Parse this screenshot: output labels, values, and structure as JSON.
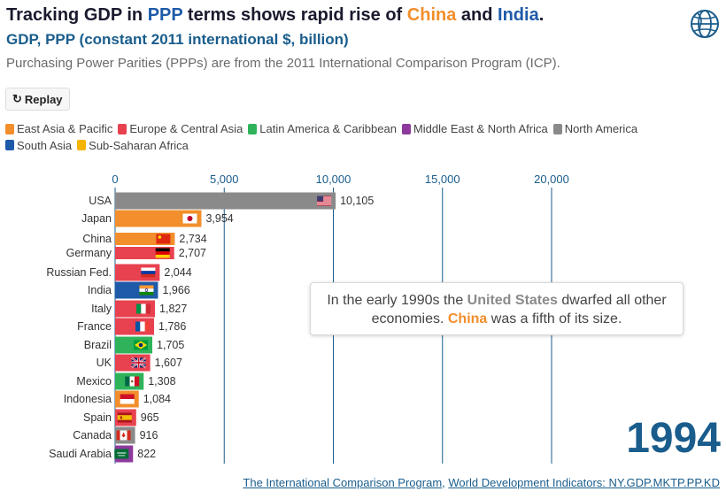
{
  "header": {
    "title_pre": "Tracking GDP in ",
    "title_ppp": "PPP",
    "title_mid": " terms shows rapid rise of ",
    "title_china": "China",
    "title_and": " and ",
    "title_india": "India",
    "title_end": ".",
    "subtitle": "GDP, PPP (constant 2011 international $, billion)",
    "description": "Purchasing Power Parities (PPPs) are from the 2011 International Comparison Program (ICP)."
  },
  "controls": {
    "replay_label": "Replay",
    "replay_icon": "replay-icon"
  },
  "legend": [
    {
      "label": "East Asia & Pacific",
      "color": "#f28e2b"
    },
    {
      "label": "Europe & Central Asia",
      "color": "#e8414f"
    },
    {
      "label": "Latin America & Caribbean",
      "color": "#2fb35a"
    },
    {
      "label": "Middle East & North Africa",
      "color": "#8e3a9c"
    },
    {
      "label": "North America",
      "color": "#8a8a8a"
    },
    {
      "label": "South Asia",
      "color": "#1e5aa8"
    },
    {
      "label": "Sub-Saharan Africa",
      "color": "#f5b400"
    }
  ],
  "chart_data": {
    "type": "bar",
    "orientation": "horizontal",
    "title": "Tracking GDP in PPP terms shows rapid rise of China and India.",
    "subtitle": "GDP, PPP (constant 2011 international $, billion)",
    "xlim": [
      0,
      22000
    ],
    "xticks": [
      0,
      5000,
      10000,
      15000,
      20000
    ],
    "xtick_labels": [
      "0",
      "5,000",
      "10,000",
      "15,000",
      "20,000"
    ],
    "grid": true,
    "year": "1994",
    "bars": [
      {
        "country": "USA",
        "value": 10105,
        "label": "10,105",
        "region": "North America",
        "color": "#8a8a8a",
        "flag": "flag-usa"
      },
      {
        "country": "Japan",
        "value": 3954,
        "label": "3,954",
        "region": "East Asia & Pacific",
        "color": "#f28e2b",
        "flag": "flag-japan"
      },
      {
        "country": "China",
        "value": 2734,
        "label": "2,734",
        "region": "East Asia & Pacific",
        "color": "#f28e2b",
        "flag": "flag-china"
      },
      {
        "country": "Germany",
        "value": 2707,
        "label": "2,707",
        "region": "Europe & Central Asia",
        "color": "#e8414f",
        "flag": "flag-germany"
      },
      {
        "country": "Russian Fed.",
        "value": 2044,
        "label": "2,044",
        "region": "Europe & Central Asia",
        "color": "#e8414f",
        "flag": "flag-russia"
      },
      {
        "country": "India",
        "value": 1966,
        "label": "1,966",
        "region": "South Asia",
        "color": "#1e5aa8",
        "flag": "flag-india"
      },
      {
        "country": "Italy",
        "value": 1827,
        "label": "1,827",
        "region": "Europe & Central Asia",
        "color": "#e8414f",
        "flag": "flag-italy"
      },
      {
        "country": "France",
        "value": 1786,
        "label": "1,786",
        "region": "Europe & Central Asia",
        "color": "#e8414f",
        "flag": "flag-france"
      },
      {
        "country": "Brazil",
        "value": 1705,
        "label": "1,705",
        "region": "Latin America & Caribbean",
        "color": "#2fb35a",
        "flag": "flag-brazil"
      },
      {
        "country": "UK",
        "value": 1607,
        "label": "1,607",
        "region": "Europe & Central Asia",
        "color": "#e8414f",
        "flag": "flag-uk"
      },
      {
        "country": "Mexico",
        "value": 1308,
        "label": "1,308",
        "region": "Latin America & Caribbean",
        "color": "#2fb35a",
        "flag": "flag-mexico"
      },
      {
        "country": "Indonesia",
        "value": 1084,
        "label": "1,084",
        "region": "East Asia & Pacific",
        "color": "#f28e2b",
        "flag": "flag-indonesia"
      },
      {
        "country": "Spain",
        "value": 965,
        "label": "965",
        "region": "Europe & Central Asia",
        "color": "#e8414f",
        "flag": "flag-spain"
      },
      {
        "country": "Canada",
        "value": 916,
        "label": "916",
        "region": "North America",
        "color": "#8a8a8a",
        "flag": "flag-canada"
      },
      {
        "country": "Saudi Arabia",
        "value": 822,
        "label": "822",
        "region": "Middle East & North Africa",
        "color": "#8e3a9c",
        "flag": "flag-saudi-arabia"
      }
    ]
  },
  "annotation": {
    "pre": "In the early 1990s the ",
    "usa": "United States",
    "mid": " dwarfed all other economies. ",
    "china": "China",
    "post": " was a fifth of its size."
  },
  "year_display": "1994",
  "source": {
    "link1": "The International Comparison Program",
    "separator": ", ",
    "link2": "World Development Indicators: NY.GDP.MKTP.PP.KD"
  },
  "icons": {
    "logo": "world-bank-globe-icon"
  }
}
